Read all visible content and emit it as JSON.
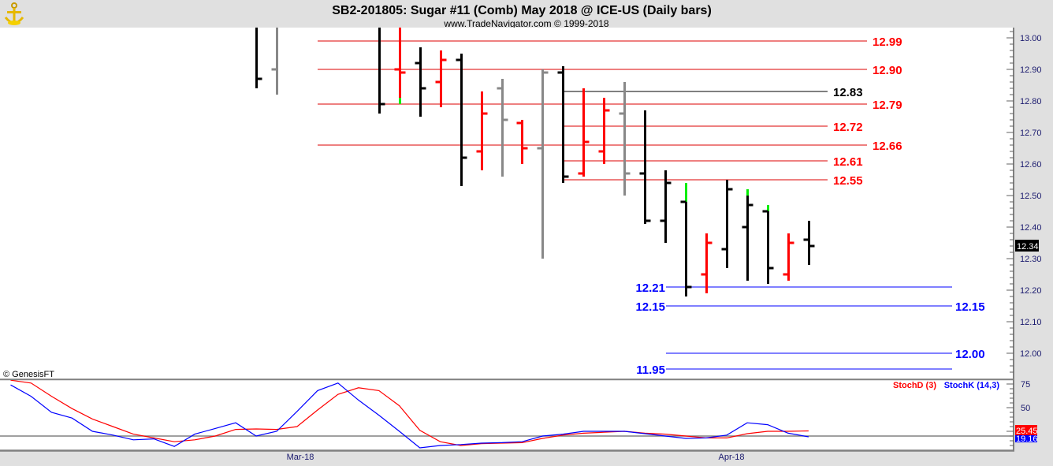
{
  "header": {
    "title": "SB2-201805:  Sugar #11 (Comb) May 2018 @ ICE-US  (Daily bars)",
    "subtitle": "www.TradeNavigator.com © 1999-2018",
    "logo_icon": "anchor-icon"
  },
  "copyright": "© GenesisFT",
  "price_axis": {
    "labels": [
      "13.00",
      "12.90",
      "12.80",
      "12.70",
      "12.60",
      "12.50",
      "12.40",
      "12.30",
      "12.20",
      "12.10",
      "12.00"
    ],
    "last_price": "12.34"
  },
  "date_axis": {
    "labels": [
      "Mar-18",
      "Apr-18"
    ]
  },
  "stoch": {
    "legend_d": "StochD (3)",
    "legend_k": "StochK (14,3)",
    "axis_labels": [
      "75",
      "50"
    ],
    "last_d": "25.45",
    "last_k": "19.16",
    "color_d": "#ff0000",
    "color_k": "#0000ff"
  },
  "levels": [
    {
      "price": 12.99,
      "label": "12.99",
      "color": "#ff0000"
    },
    {
      "price": 12.9,
      "label": "12.90",
      "color": "#ff0000"
    },
    {
      "price": 12.79,
      "label": "12.79",
      "color": "#ff0000"
    },
    {
      "price": 12.66,
      "label": "12.66",
      "color": "#ff0000"
    },
    {
      "price": 12.83,
      "label": "12.83",
      "color": "#000000"
    },
    {
      "price": 12.72,
      "label": "12.72",
      "color": "#ff0000"
    },
    {
      "price": 12.61,
      "label": "12.61",
      "color": "#ff0000"
    },
    {
      "price": 12.55,
      "label": "12.55",
      "color": "#ff0000"
    },
    {
      "price": 12.21,
      "label": "12.21",
      "color": "#0000ff"
    },
    {
      "price": 12.15,
      "label": "12.15",
      "color": "#0000ff"
    },
    {
      "price": 12.0,
      "label": "12.00",
      "color": "#0000ff"
    },
    {
      "price": 11.95,
      "label": "11.95",
      "color": "#0000ff"
    }
  ],
  "chart_data": {
    "type": "ohlc",
    "ylim": [
      11.9,
      13.03
    ],
    "bar_colors": {
      "black": "#000000",
      "red": "#ff0000",
      "gray": "#888888",
      "highlight": "#00ee00"
    },
    "bars": [
      {
        "o": null,
        "h": 13.05,
        "l": 12.84,
        "c": 12.87,
        "color": "black"
      },
      {
        "o": 12.9,
        "h": 13.05,
        "l": 12.82,
        "c": null,
        "color": "gray"
      },
      {
        "o": null,
        "h": 13.05,
        "l": 12.76,
        "c": 12.79,
        "color": "black"
      },
      {
        "o": 12.9,
        "h": 13.05,
        "l": 12.79,
        "c": 12.89,
        "color": "red",
        "green": [
          12.79,
          12.81
        ]
      },
      {
        "o": 12.92,
        "h": 12.97,
        "l": 12.75,
        "c": 12.84,
        "color": "black"
      },
      {
        "o": 12.86,
        "h": 12.96,
        "l": 12.78,
        "c": 12.93,
        "color": "red"
      },
      {
        "o": 12.93,
        "h": 12.95,
        "l": 12.53,
        "c": 12.62,
        "color": "black"
      },
      {
        "o": 12.64,
        "h": 12.83,
        "l": 12.58,
        "c": 12.76,
        "color": "red"
      },
      {
        "o": 12.84,
        "h": 12.87,
        "l": 12.56,
        "c": 12.74,
        "color": "gray"
      },
      {
        "o": 12.73,
        "h": 12.74,
        "l": 12.6,
        "c": 12.65,
        "color": "red"
      },
      {
        "o": 12.65,
        "h": 12.9,
        "l": 12.3,
        "c": 12.89,
        "color": "gray"
      },
      {
        "o": 12.89,
        "h": 12.91,
        "l": 12.54,
        "c": 12.56,
        "color": "black"
      },
      {
        "o": 12.57,
        "h": 12.84,
        "l": 12.56,
        "c": 12.67,
        "color": "red"
      },
      {
        "o": 12.64,
        "h": 12.81,
        "l": 12.6,
        "c": 12.77,
        "color": "red"
      },
      {
        "o": 12.76,
        "h": 12.86,
        "l": 12.5,
        "c": 12.57,
        "color": "gray"
      },
      {
        "o": 12.57,
        "h": 12.77,
        "l": 12.41,
        "c": 12.42,
        "color": "black"
      },
      {
        "o": 12.42,
        "h": 12.58,
        "l": 12.35,
        "c": 12.54,
        "color": "black"
      },
      {
        "o": 12.48,
        "h": 12.54,
        "l": 12.18,
        "c": 12.21,
        "color": "black",
        "green": [
          12.48,
          12.54
        ]
      },
      {
        "o": 12.25,
        "h": 12.38,
        "l": 12.19,
        "c": 12.35,
        "color": "red"
      },
      {
        "o": 12.33,
        "h": 12.55,
        "l": 12.27,
        "c": 12.52,
        "color": "black"
      },
      {
        "o": 12.4,
        "h": 12.52,
        "l": 12.23,
        "c": 12.47,
        "color": "black",
        "green": [
          12.5,
          12.52
        ]
      },
      {
        "o": 12.45,
        "h": 12.47,
        "l": 12.22,
        "c": 12.27,
        "color": "black",
        "green": [
          12.45,
          12.47
        ]
      },
      {
        "o": 12.25,
        "h": 12.38,
        "l": 12.23,
        "c": 12.35,
        "color": "red"
      },
      {
        "o": 12.36,
        "h": 12.42,
        "l": 12.28,
        "c": 12.34,
        "color": "black"
      }
    ],
    "stochastic": {
      "ylim": [
        0,
        100
      ],
      "reference_lines": [
        80,
        20
      ],
      "series": [
        {
          "name": "StochK (14,3)",
          "color": "#0000ff",
          "values": [
            74,
            62,
            45,
            39,
            25,
            21,
            16,
            17,
            9,
            22,
            28,
            34,
            20,
            25,
            46,
            68,
            76,
            58,
            42,
            25,
            7.5,
            10,
            11,
            12.5,
            13,
            14,
            20,
            22,
            25,
            25,
            25,
            22.5,
            20,
            17.5,
            18,
            21,
            34,
            32,
            23,
            19.16
          ]
        },
        {
          "name": "StochD (3)",
          "color": "#ff0000",
          "values": [
            79,
            76,
            62,
            49,
            38,
            30,
            22,
            18,
            14,
            16,
            20,
            27,
            27.5,
            27,
            30,
            47.5,
            64,
            71,
            68,
            52,
            26,
            14,
            10,
            12,
            12.5,
            13,
            17.5,
            21,
            23,
            24,
            25,
            23,
            22,
            20,
            18,
            18,
            22.5,
            25,
            25,
            25.45
          ]
        }
      ]
    }
  }
}
